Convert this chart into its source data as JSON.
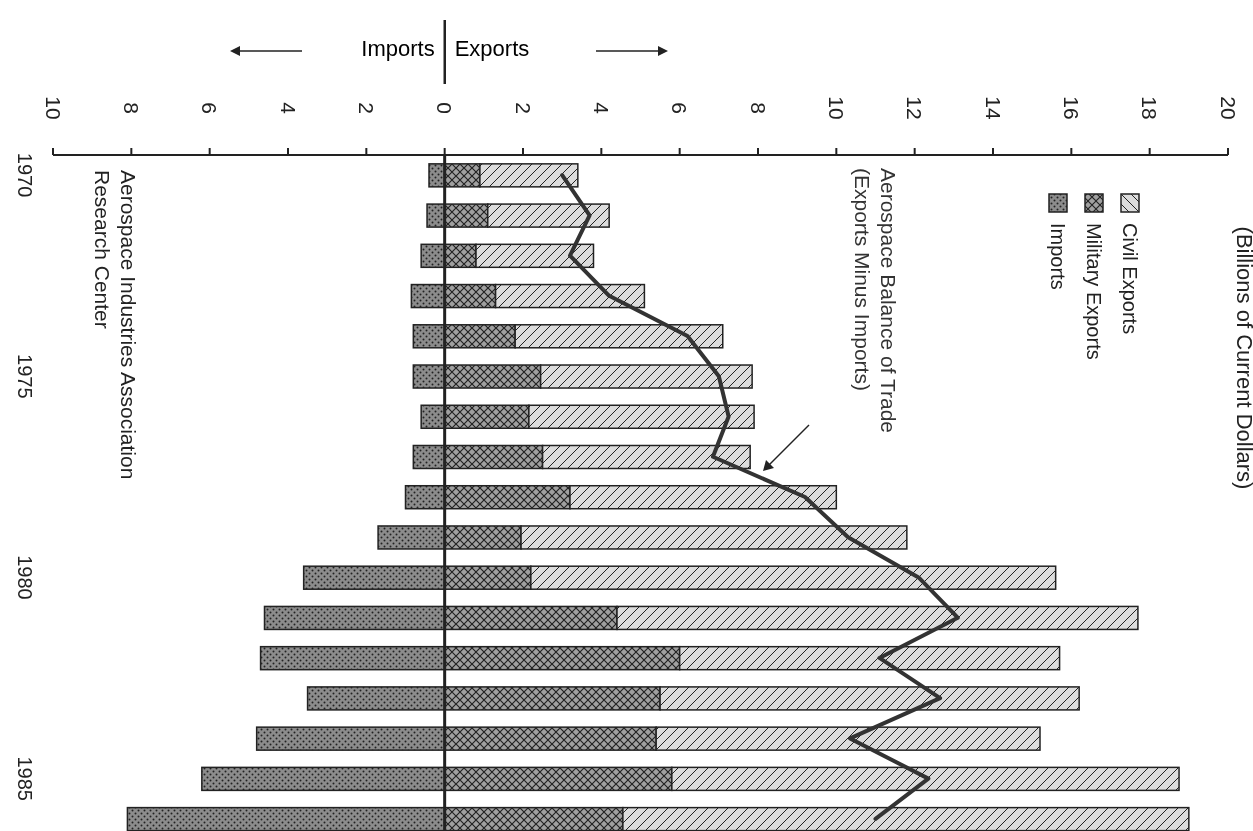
{
  "chart_data": {
    "type": "bar",
    "orientation": "horizontal",
    "stacked": true,
    "title": "(Billions of Current Dollars)",
    "categories": [
      "1970",
      null,
      null,
      null,
      null,
      "1975",
      null,
      null,
      null,
      null,
      "1980",
      null,
      null,
      null,
      null,
      "1985",
      null
    ],
    "series": [
      {
        "name": "Imports",
        "color": "#8c8c8c",
        "values": [
          -0.4,
          -0.45,
          -0.6,
          -0.85,
          -0.8,
          -0.8,
          -0.6,
          -0.8,
          -1.0,
          -1.7,
          -3.6,
          -4.6,
          -4.7,
          -3.5,
          -4.8,
          -6.2,
          -8.1
        ]
      },
      {
        "name": "Military Exports",
        "color": "#a0a0a0",
        "values": [
          0.9,
          1.1,
          0.8,
          1.3,
          1.8,
          2.45,
          2.15,
          2.5,
          3.2,
          1.95,
          2.2,
          4.4,
          6.0,
          5.5,
          5.4,
          5.8,
          4.55
        ]
      },
      {
        "name": "Civil Exports",
        "color": "#dcdcdc",
        "values": [
          2.5,
          3.1,
          3.0,
          3.8,
          5.3,
          5.4,
          5.75,
          5.3,
          6.8,
          9.85,
          13.4,
          13.3,
          9.7,
          10.7,
          9.8,
          12.95,
          14.45
        ]
      },
      {
        "name": "Aerospace Balance of Trade (Exports Minus Imports)",
        "type": "line",
        "color": "#333333",
        "values": [
          3.0,
          3.7,
          3.2,
          4.2,
          6.2,
          7.0,
          7.25,
          6.85,
          9.2,
          10.3,
          12.1,
          13.1,
          11.1,
          12.65,
          10.35,
          12.35,
          11.0
        ]
      }
    ],
    "xlim": [
      -10,
      20
    ],
    "xticks": [
      {
        "value": -10,
        "label": "10"
      },
      {
        "value": -8,
        "label": "8"
      },
      {
        "value": -6,
        "label": "6"
      },
      {
        "value": -4,
        "label": "4"
      },
      {
        "value": -2,
        "label": "2"
      },
      0,
      2,
      4,
      6,
      8,
      10,
      12,
      14,
      16,
      18,
      20
    ],
    "ref_lines": [
      {
        "axis": "x",
        "value": 0,
        "color": "#222222"
      }
    ],
    "annotations": [
      "Imports",
      "Exports",
      "Aerospace Industries Association Research Center"
    ],
    "legend": "top right"
  }
}
